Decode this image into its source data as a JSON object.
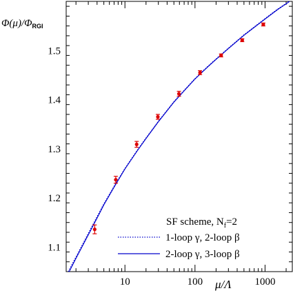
{
  "chart_data": {
    "type": "scatter",
    "xscale": "log",
    "xlim": [
      1.45,
      2450
    ],
    "ylim": [
      1.05,
      1.6
    ],
    "ylabel": {
      "main": "Φ(μ)/Φ",
      "sub": "RGI"
    },
    "xlabel": "μ/Λ",
    "x_ticks": [
      {
        "value": 10,
        "label": "10"
      },
      {
        "value": 100,
        "label": "100"
      },
      {
        "value": 1000,
        "label": "1000"
      }
    ],
    "y_ticks": [
      {
        "value": 1.1,
        "label": "1.1"
      },
      {
        "value": 1.2,
        "label": "1.2"
      },
      {
        "value": 1.3,
        "label": "1.3"
      },
      {
        "value": 1.4,
        "label": "1.4"
      },
      {
        "value": 1.5,
        "label": "1.5"
      }
    ],
    "points": [
      {
        "x": 3.7,
        "y": 1.136,
        "err": 0.009
      },
      {
        "x": 7.4,
        "y": 1.237,
        "err": 0.007
      },
      {
        "x": 14.7,
        "y": 1.309,
        "err": 0.006
      },
      {
        "x": 29.5,
        "y": 1.365,
        "err": 0.005
      },
      {
        "x": 59,
        "y": 1.412,
        "err": 0.005
      },
      {
        "x": 118,
        "y": 1.455,
        "err": 0.004
      },
      {
        "x": 236,
        "y": 1.49,
        "err": 0.003
      },
      {
        "x": 472,
        "y": 1.521,
        "err": 0.003
      },
      {
        "x": 944,
        "y": 1.553,
        "err": 0.003
      }
    ],
    "curves": [
      {
        "name": "1-loop γ, 2-loop β",
        "style": "dotted",
        "color": "#0000cc",
        "x": [
          1.55,
          2,
          3,
          4,
          5,
          7,
          10,
          15,
          20,
          30,
          50,
          70,
          100,
          150,
          200,
          300,
          500,
          700,
          1000,
          1500,
          2000,
          2450
        ],
        "y": [
          1.05,
          1.08,
          1.128,
          1.162,
          1.188,
          1.224,
          1.26,
          1.297,
          1.322,
          1.356,
          1.396,
          1.419,
          1.443,
          1.467,
          1.483,
          1.505,
          1.532,
          1.548,
          1.565,
          1.584,
          1.596,
          1.605
        ]
      },
      {
        "name": "2-loop γ, 3-loop β",
        "style": "solid",
        "color": "#0000cc",
        "x": [
          1.6,
          2,
          3,
          4,
          5,
          7,
          10,
          15,
          20,
          30,
          50,
          70,
          100,
          150,
          200,
          300,
          500,
          700,
          1000,
          1500,
          2000,
          2450
        ],
        "y": [
          1.05,
          1.077,
          1.125,
          1.159,
          1.186,
          1.222,
          1.259,
          1.296,
          1.321,
          1.355,
          1.395,
          1.418,
          1.442,
          1.466,
          1.482,
          1.504,
          1.531,
          1.547,
          1.564,
          1.583,
          1.595,
          1.604
        ]
      }
    ],
    "legend": {
      "title": "SF scheme, N",
      "title_sub": "f",
      "title_end": "=2",
      "placement": "lower-right",
      "entries": [
        {
          "label": "1-loop γ, 2-loop β",
          "style": "dotted"
        },
        {
          "label": "2-loop γ, 3-loop β",
          "style": "solid"
        }
      ]
    },
    "colors": {
      "points": "#dd0000",
      "curve": "#0000cc",
      "axes": "#000000"
    }
  }
}
